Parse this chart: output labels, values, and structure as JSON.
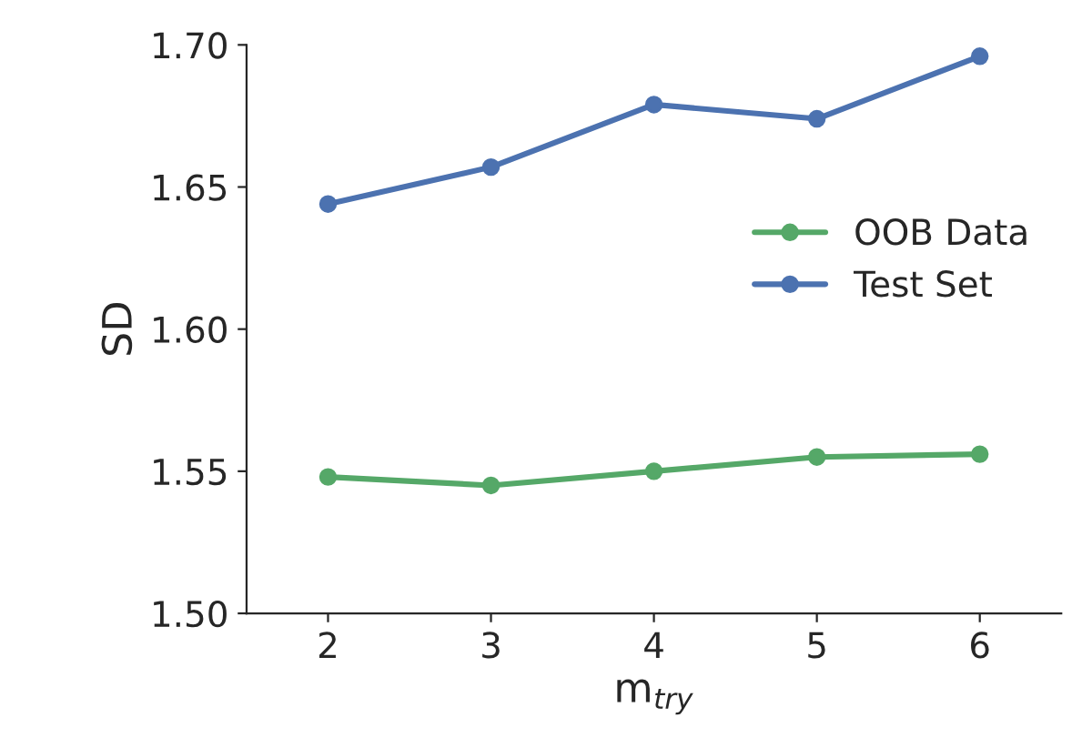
{
  "chart_data": {
    "type": "line",
    "xlabel": "m$_{try}$",
    "ylabel": "SD",
    "x": [
      2,
      3,
      4,
      5,
      6
    ],
    "series": [
      {
        "name": "OOB Data",
        "color": "#55a868",
        "values": [
          1.548,
          1.545,
          1.55,
          1.555,
          1.556
        ]
      },
      {
        "name": "Test Set",
        "color": "#4c72b0",
        "values": [
          1.644,
          1.657,
          1.679,
          1.674,
          1.696
        ]
      }
    ],
    "xlim": [
      1.5,
      6.5
    ],
    "xticks": [
      2,
      3,
      4,
      5,
      6
    ],
    "ylim": [
      1.5,
      1.7
    ],
    "yticks": [
      {
        "value": 1.5,
        "label": "1.50"
      },
      {
        "value": 1.55,
        "label": "1.55"
      },
      {
        "value": 1.6,
        "label": "1.60"
      },
      {
        "value": 1.65,
        "label": "1.65"
      },
      {
        "value": 1.7,
        "label": "1.70"
      }
    ],
    "marker": "circle",
    "line_style": "solid",
    "legend": "right",
    "grid": false
  }
}
